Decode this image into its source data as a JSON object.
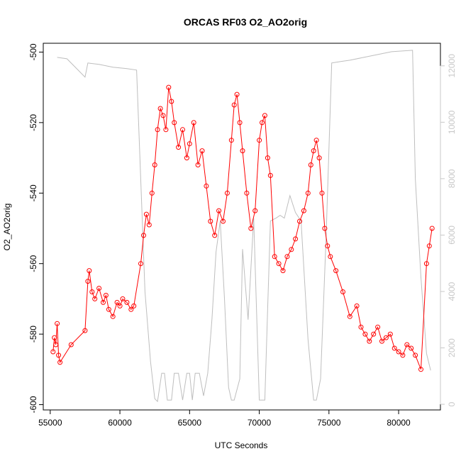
{
  "chart_data": {
    "type": "scatter",
    "title": "ORCAS RF03 O2_AO2orig",
    "xlabel": "UTC Seconds",
    "ylabel": "O2_AO2orig",
    "xlim": [
      54500,
      83000
    ],
    "ylim": [
      -601.5,
      -497.5
    ],
    "y2lim": [
      -200,
      12800
    ],
    "x_ticks": [
      55000,
      60000,
      65000,
      70000,
      75000,
      80000
    ],
    "y_ticks": [
      -600,
      -580,
      -560,
      -540,
      -520,
      -500
    ],
    "y2_ticks": [
      0,
      2000,
      4000,
      6000,
      8000,
      10000,
      12000
    ],
    "colors": {
      "series": "#ff0000",
      "altitude": "#bebebe"
    },
    "series": [
      {
        "style": "points-and-lines",
        "x": [
          55200,
          55300,
          55400,
          55500,
          55600,
          55700,
          56500,
          57500,
          57700,
          57800,
          58000,
          58200,
          58500,
          58800,
          59000,
          59200,
          59500,
          59800,
          60000,
          60200,
          60500,
          60800,
          61000,
          61500,
          61700,
          61900,
          62100,
          62300,
          62500,
          62700,
          62900,
          63100,
          63300,
          63500,
          63700,
          63900,
          64200,
          64500,
          64800,
          65000,
          65300,
          65600,
          65900,
          66200,
          66500,
          66800,
          67100,
          67400,
          67700,
          68000,
          68200,
          68400,
          68600,
          68800,
          69100,
          69400,
          69700,
          70000,
          70200,
          70400,
          70600,
          70800,
          71100,
          71400,
          71700,
          72000,
          72300,
          72600,
          72900,
          73200,
          73500,
          73700,
          73900,
          74100,
          74300,
          74500,
          74700,
          74900,
          75100,
          75500,
          76000,
          76500,
          77000,
          77300,
          77600,
          77900,
          78200,
          78500,
          78800,
          79100,
          79400,
          79700,
          80000,
          80300,
          80600,
          80900,
          81200,
          81600,
          82000,
          82200,
          82400
        ],
        "values": [
          -585,
          -581,
          -583,
          -577,
          -586,
          -588,
          -583,
          -579,
          -565,
          -562,
          -568,
          -570,
          -567,
          -571,
          -569,
          -573,
          -575,
          -571,
          -572,
          -570,
          -571,
          -573,
          -572,
          -560,
          -552,
          -546,
          -549,
          -540,
          -532,
          -522,
          -516,
          -518,
          -522,
          -510,
          -514,
          -520,
          -527,
          -522,
          -530,
          -526,
          -520,
          -532,
          -528,
          -538,
          -548,
          -552,
          -545,
          -548,
          -540,
          -525,
          -515,
          -512,
          -520,
          -528,
          -540,
          -550,
          -545,
          -525,
          -520,
          -518,
          -530,
          -535,
          -558,
          -560,
          -562,
          -558,
          -556,
          -553,
          -548,
          -545,
          -540,
          -532,
          -528,
          -525,
          -530,
          -540,
          -550,
          -555,
          -558,
          -562,
          -568,
          -575,
          -572,
          -578,
          -580,
          -582,
          -580,
          -578,
          -582,
          -581,
          -580,
          -584,
          -585,
          -586,
          -583,
          -584,
          -586,
          -590,
          -560,
          -555,
          -550
        ]
      },
      {
        "name": "",
        "style": "line",
        "axis": "right",
        "x": [
          55500,
          56200,
          57500,
          57700,
          58500,
          59500,
          60500,
          61200,
          61800,
          62200,
          62500,
          62700,
          63000,
          63200,
          63400,
          63700,
          63900,
          64200,
          64500,
          64800,
          65000,
          65200,
          65400,
          65700,
          66000,
          66300,
          66600,
          66900,
          67200,
          67500,
          67800,
          68000,
          68200,
          68600,
          68800,
          69200,
          69600,
          70000,
          70400,
          70600,
          70800,
          71200,
          71500,
          71800,
          72200,
          72600,
          73000,
          73500,
          73900,
          74100,
          74400,
          74800,
          75200,
          75800,
          76500,
          77500,
          78500,
          79500,
          81000,
          81200,
          81600,
          82000,
          82300
        ],
        "values": [
          12300,
          12250,
          11600,
          12100,
          12050,
          11950,
          11900,
          11850,
          4000,
          1500,
          200,
          100,
          1100,
          1100,
          150,
          150,
          1100,
          1100,
          150,
          1100,
          1100,
          150,
          1100,
          1100,
          300,
          1100,
          3000,
          5400,
          6500,
          3800,
          600,
          150,
          150,
          900,
          5500,
          3000,
          6600,
          150,
          150,
          3400,
          6500,
          6600,
          6700,
          6600,
          7400,
          6800,
          6500,
          2300,
          150,
          150,
          900,
          6000,
          12100,
          12150,
          12200,
          12300,
          12400,
          12500,
          12550,
          8000,
          4500,
          1800,
          1200
        ]
      }
    ]
  }
}
